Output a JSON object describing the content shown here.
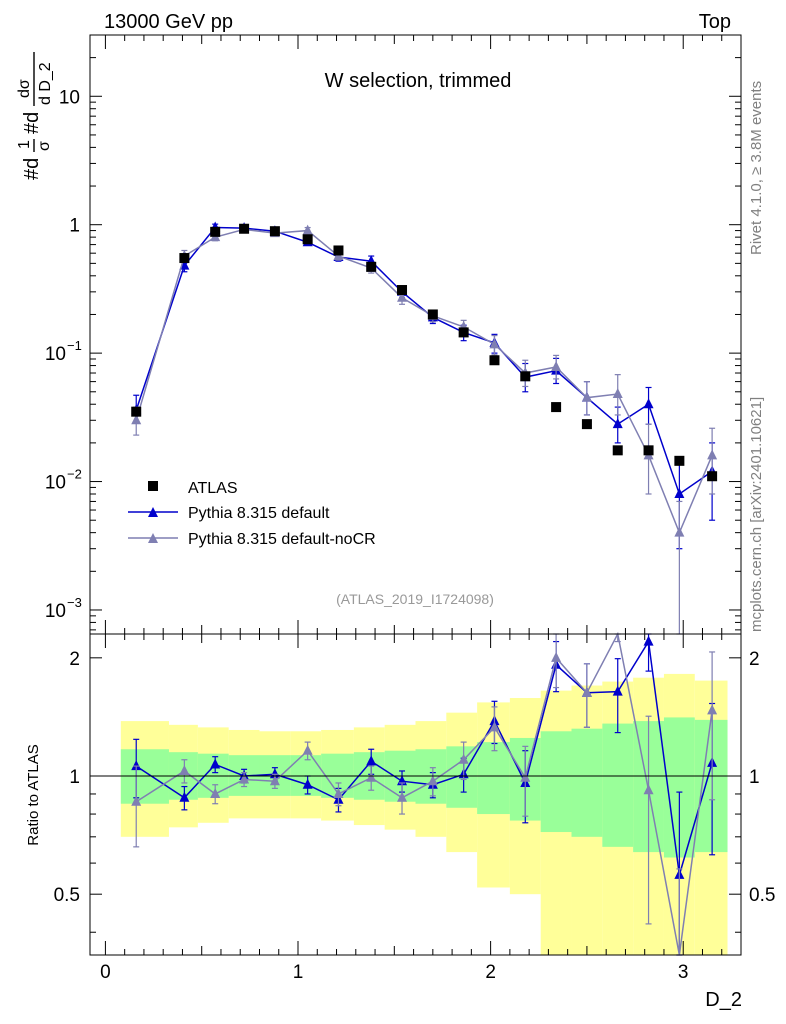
{
  "chart_data": {
    "type": "scatter",
    "header_left": "13000 GeV pp",
    "header_right": "Top",
    "title": "W selection, trimmed",
    "analysis_id": "(ATLAS_2019_I1724098)",
    "side_label_top": "Rivet 4.1.0, ≥ 3.8M events",
    "side_label_bottom": "mcplots.cern.ch [arXiv:2401.10621]",
    "xlabel": "D_2",
    "ylabel_main": "#dσ/#dD_2 · 1/σ",
    "ylabel_main_parts": {
      "a": "#d",
      "b": "1",
      "c": "σ",
      "d": "#d",
      "e": "dσ",
      "f": "d D_2"
    },
    "ylabel_ratio": "Ratio to ATLAS",
    "xlim": [
      -0.08,
      3.3
    ],
    "ylim_main": [
      0.00065,
      30
    ],
    "ylim_ratio": [
      0.35,
      2.3
    ],
    "x_ticks": [
      "0",
      "1",
      "2",
      "3"
    ],
    "y_ticks_main": [
      {
        "v": 10,
        "base": "10",
        "exp": ""
      },
      {
        "v": 1,
        "base": "1",
        "exp": ""
      },
      {
        "v": 0.1,
        "base": "10",
        "exp": "−1"
      },
      {
        "v": 0.01,
        "base": "10",
        "exp": "−2"
      },
      {
        "v": 0.001,
        "base": "10",
        "exp": "−3"
      }
    ],
    "y_ticks_ratio": [
      {
        "v": 0.5,
        "label": "0.5"
      },
      {
        "v": 1,
        "label": "1"
      },
      {
        "v": 2,
        "label": "2"
      }
    ],
    "legend": [
      {
        "name": "ATLAS",
        "marker": "square",
        "color": "#000000"
      },
      {
        "name": "Pythia 8.315 default",
        "marker": "triangle",
        "color": "#0000cc"
      },
      {
        "name": "Pythia 8.315 default-noCR",
        "marker": "triangle",
        "color": "#7f7fb2"
      }
    ],
    "bin_edges": [
      0.08,
      0.33,
      0.48,
      0.64,
      0.8,
      0.96,
      1.12,
      1.29,
      1.45,
      1.61,
      1.77,
      1.93,
      2.1,
      2.26,
      2.42,
      2.58,
      2.74,
      2.9,
      3.06,
      3.23
    ],
    "x": [
      0.16,
      0.41,
      0.57,
      0.72,
      0.88,
      1.05,
      1.21,
      1.38,
      1.54,
      1.7,
      1.86,
      2.02,
      2.18,
      2.34,
      2.5,
      2.66,
      2.82,
      2.98,
      3.15
    ],
    "series": [
      {
        "name": "ATLAS",
        "color": "#000000",
        "values": [
          0.035,
          0.55,
          0.88,
          0.93,
          0.89,
          0.77,
          0.63,
          0.47,
          0.31,
          0.2,
          0.145,
          0.088,
          0.066,
          0.038,
          0.028,
          0.0175,
          0.0175,
          0.0145,
          0.011
        ]
      },
      {
        "name": "Pythia 8.315 default",
        "color": "#0000cc",
        "values": [
          0.036,
          0.48,
          0.95,
          0.94,
          0.89,
          0.73,
          0.56,
          0.52,
          0.3,
          0.19,
          0.145,
          0.12,
          0.065,
          0.073,
          0.045,
          0.028,
          0.04,
          0.008,
          0.012
        ],
        "err_lo": [
          0.007,
          0.05,
          0.06,
          0.04,
          0.04,
          0.04,
          0.04,
          0.05,
          0.03,
          0.02,
          0.02,
          0.02,
          0.015,
          0.015,
          0.012,
          0.008,
          0.012,
          0.005,
          0.007
        ],
        "err_hi": [
          0.011,
          0.06,
          0.06,
          0.04,
          0.04,
          0.04,
          0.04,
          0.05,
          0.03,
          0.02,
          0.02,
          0.02,
          0.018,
          0.018,
          0.015,
          0.01,
          0.014,
          0.006,
          0.008
        ],
        "ratio": [
          1.06,
          0.88,
          1.07,
          1.0,
          1.01,
          0.95,
          0.87,
          1.09,
          0.97,
          0.95,
          1.01,
          1.38,
          0.96,
          1.92,
          1.63,
          1.64,
          2.2,
          0.56,
          1.08
        ],
        "ratio_err": [
          0.18,
          0.06,
          0.05,
          0.04,
          0.04,
          0.05,
          0.06,
          0.08,
          0.06,
          0.07,
          0.1,
          0.17,
          0.2,
          0.28,
          0.3,
          0.35,
          0.35,
          0.35,
          0.45
        ]
      },
      {
        "name": "Pythia 8.315 default-noCR",
        "color": "#7f7fb2",
        "values": [
          0.03,
          0.57,
          0.8,
          0.92,
          0.86,
          0.9,
          0.57,
          0.46,
          0.27,
          0.195,
          0.16,
          0.117,
          0.07,
          0.078,
          0.045,
          0.048,
          0.016,
          0.004,
          0.016
        ],
        "err_lo": [
          0.007,
          0.05,
          0.05,
          0.04,
          0.04,
          0.05,
          0.04,
          0.04,
          0.03,
          0.02,
          0.02,
          0.02,
          0.015,
          0.015,
          0.012,
          0.015,
          0.008,
          0.004,
          0.008
        ],
        "err_hi": [
          0.008,
          0.06,
          0.05,
          0.04,
          0.04,
          0.05,
          0.04,
          0.04,
          0.03,
          0.02,
          0.02,
          0.02,
          0.018,
          0.018,
          0.015,
          0.02,
          0.012,
          0.003,
          0.01
        ],
        "ratio": [
          0.86,
          1.03,
          0.9,
          0.98,
          0.97,
          1.16,
          0.9,
          0.99,
          0.88,
          0.97,
          1.1,
          1.33,
          0.99,
          2.0,
          1.63,
          2.6,
          0.92,
          0.28,
          1.47
        ],
        "ratio_err": [
          0.2,
          0.07,
          0.05,
          0.04,
          0.04,
          0.06,
          0.06,
          0.07,
          0.08,
          0.08,
          0.12,
          0.17,
          0.2,
          0.32,
          0.3,
          0.4,
          0.5,
          0.3,
          0.6
        ]
      }
    ],
    "band_1sigma": [
      {
        "lo": 0.85,
        "hi": 1.17
      },
      {
        "lo": 0.87,
        "hi": 1.15
      },
      {
        "lo": 0.88,
        "hi": 1.14
      },
      {
        "lo": 0.89,
        "hi": 1.13
      },
      {
        "lo": 0.89,
        "hi": 1.13
      },
      {
        "lo": 0.89,
        "hi": 1.13
      },
      {
        "lo": 0.88,
        "hi": 1.14
      },
      {
        "lo": 0.87,
        "hi": 1.15
      },
      {
        "lo": 0.86,
        "hi": 1.16
      },
      {
        "lo": 0.85,
        "hi": 1.17
      },
      {
        "lo": 0.83,
        "hi": 1.19
      },
      {
        "lo": 0.8,
        "hi": 1.22
      },
      {
        "lo": 0.77,
        "hi": 1.25
      },
      {
        "lo": 0.72,
        "hi": 1.3
      },
      {
        "lo": 0.7,
        "hi": 1.32
      },
      {
        "lo": 0.66,
        "hi": 1.36
      },
      {
        "lo": 0.64,
        "hi": 1.38
      },
      {
        "lo": 0.62,
        "hi": 1.41
      },
      {
        "lo": 0.64,
        "hi": 1.39
      }
    ],
    "band_2sigma": [
      {
        "lo": 0.7,
        "hi": 1.38
      },
      {
        "lo": 0.74,
        "hi": 1.35
      },
      {
        "lo": 0.76,
        "hi": 1.33
      },
      {
        "lo": 0.78,
        "hi": 1.31
      },
      {
        "lo": 0.78,
        "hi": 1.3
      },
      {
        "lo": 0.78,
        "hi": 1.3
      },
      {
        "lo": 0.77,
        "hi": 1.31
      },
      {
        "lo": 0.75,
        "hi": 1.33
      },
      {
        "lo": 0.73,
        "hi": 1.35
      },
      {
        "lo": 0.7,
        "hi": 1.38
      },
      {
        "lo": 0.64,
        "hi": 1.45
      },
      {
        "lo": 0.52,
        "hi": 1.54
      },
      {
        "lo": 0.5,
        "hi": 1.58
      },
      {
        "lo": 0.35,
        "hi": 1.65
      },
      {
        "lo": 0.35,
        "hi": 1.7
      },
      {
        "lo": 0.35,
        "hi": 1.74
      },
      {
        "lo": 0.35,
        "hi": 1.78
      },
      {
        "lo": 0.35,
        "hi": 1.82
      },
      {
        "lo": 0.35,
        "hi": 1.75
      }
    ]
  }
}
